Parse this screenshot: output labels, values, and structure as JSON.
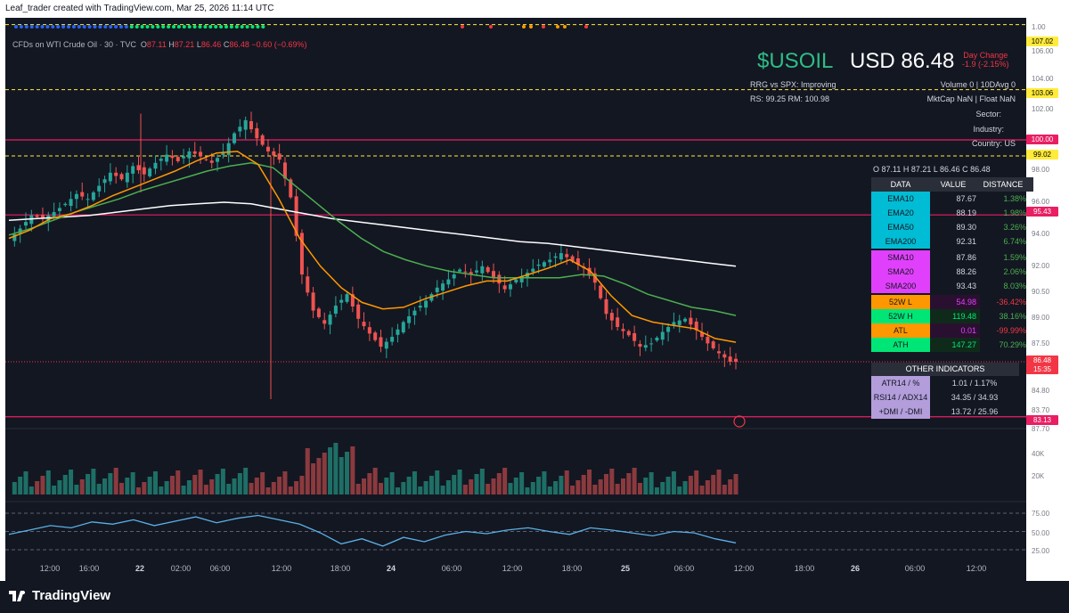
{
  "attribution": "Leaf_trader created with TradingView.com, Mar 25, 2026 11:14 UTC",
  "legend": {
    "symbol_line": "CFDs on WTI Crude Oil · 30 · TVC",
    "o_label": "O",
    "o": "87.11",
    "h_label": "H",
    "h": "87.21",
    "l_label": "L",
    "l": "86.46",
    "c_label": "C",
    "c": "86.48",
    "change": "−0.60 (−0.69%)"
  },
  "header": {
    "symbol": "$USOIL",
    "price": "USD 86.48",
    "day_change_label": "Day Change",
    "day_change": "-1.9 (-2.15%)",
    "rrg": "RRG vs SPX: Improving",
    "rs": "RS: 99.25  RM: 100.98",
    "volume": "Volume 0 | 10DAvg 0",
    "mktcap": "MktCap NaN | Float NaN",
    "sector": "Sector:",
    "industry": "Industry:",
    "country": "Country: US"
  },
  "table": {
    "ohlc": "O 87.11    H 87.21    L 86.46    C 86.48",
    "headers": [
      "DATA",
      "VALUE",
      "DISTANCE"
    ],
    "ema": [
      {
        "name": "EMA10",
        "value": "87.67",
        "distance": "1.38%"
      },
      {
        "name": "EMA20",
        "value": "88.19",
        "distance": "1.98%"
      },
      {
        "name": "EMA50",
        "value": "89.30",
        "distance": "3.26%"
      },
      {
        "name": "EMA200",
        "value": "92.31",
        "distance": "6.74%"
      }
    ],
    "sma": [
      {
        "name": "SMA10",
        "value": "87.86",
        "distance": "1.59%"
      },
      {
        "name": "SMA20",
        "value": "88.26",
        "distance": "2.06%"
      },
      {
        "name": "SMA200",
        "value": "93.43",
        "distance": "8.03%"
      }
    ],
    "ext": [
      {
        "name": "52W L",
        "value": "54.98",
        "distance": "-36.42%"
      },
      {
        "name": "52W H",
        "value": "119.48",
        "distance": "38.16%"
      },
      {
        "name": "ATL",
        "value": "0.01",
        "distance": "-99.99%"
      },
      {
        "name": "ATH",
        "value": "147.27",
        "distance": "70.29%"
      }
    ],
    "other_title": "OTHER INDICATORS",
    "other": [
      {
        "name": "ATR14 / %",
        "value": "1.01 / 1.17%"
      },
      {
        "name": "RSI14 / ADX14",
        "value": "34.35 / 34.93"
      },
      {
        "name": "+DMI / -DMI",
        "value": "13.72 / 25.96"
      }
    ]
  },
  "price_labels": [
    {
      "value": "107.02",
      "color": "#ffeb3b",
      "text_color": "#000000"
    },
    {
      "value": "103.06",
      "color": "#ffeb3b",
      "text_color": "#000000"
    },
    {
      "value": "100.00",
      "color": "#e91e63",
      "text_color": "#ffffff"
    },
    {
      "value": "99.02",
      "color": "#ffeb3b",
      "text_color": "#000000"
    },
    {
      "value": "95.43",
      "color": "#e91e63",
      "text_color": "#ffffff"
    },
    {
      "value": "86.48",
      "color": "#f23645",
      "text_color": "#ffffff"
    },
    {
      "value": "15:35",
      "color": "#f23645",
      "text_color": "#ffffff"
    },
    {
      "value": "83.13",
      "color": "#e91e63",
      "text_color": "#ffffff"
    }
  ],
  "right_ticks": [
    "1.00",
    "106.00",
    "104.00",
    "102.00",
    "98.00",
    "96.00",
    "94.00",
    "92.00",
    "90.50",
    "89.00",
    "87.50",
    "84.80",
    "83.70",
    "87.70",
    "40K",
    "20K",
    "75.00",
    "50.00",
    "25.00"
  ],
  "x_ticks": [
    {
      "label": "12:00",
      "bold": false
    },
    {
      "label": "16:00",
      "bold": false
    },
    {
      "label": "22",
      "bold": true
    },
    {
      "label": "02:00",
      "bold": false
    },
    {
      "label": "06:00",
      "bold": false
    },
    {
      "label": "12:00",
      "bold": false
    },
    {
      "label": "18:00",
      "bold": false
    },
    {
      "label": "24",
      "bold": true
    },
    {
      "label": "06:00",
      "bold": false
    },
    {
      "label": "12:00",
      "bold": false
    },
    {
      "label": "18:00",
      "bold": false
    },
    {
      "label": "25",
      "bold": true
    },
    {
      "label": "06:00",
      "bold": false
    },
    {
      "label": "12:00",
      "bold": false
    },
    {
      "label": "18:00",
      "bold": false
    },
    {
      "label": "26",
      "bold": true
    },
    {
      "label": "06:00",
      "bold": false
    },
    {
      "label": "12:00",
      "bold": false
    }
  ],
  "brand": "TradingView",
  "colors": {
    "up": "#26a69a",
    "down": "#ef5350",
    "ema10": "#ff9800",
    "ema50": "#4caf50",
    "ema200": "#ffffff",
    "rsi": "#5ab0e6",
    "hline": "#e91e63",
    "dashed": "#ffeb3b"
  },
  "chart_data": {
    "type": "candlestick",
    "title": "CFDs on WTI Crude Oil · 30 · TVC",
    "x_labels": [
      "12:00",
      "16:00",
      "22",
      "02:00",
      "06:00",
      "12:00",
      "18:00",
      "24",
      "06:00",
      "12:00",
      "18:00",
      "25",
      "06:00",
      "12:00"
    ],
    "ylim": [
      83.13,
      107.02
    ],
    "close_path": [
      93.9,
      94.6,
      95.4,
      95.2,
      95.6,
      96.1,
      96.7,
      96.4,
      97.2,
      98.0,
      97.6,
      98.4,
      97.9,
      98.6,
      99.1,
      98.7,
      99.3,
      99.0,
      98.6,
      99.2,
      100.4,
      101.2,
      100.1,
      99.3,
      98.8,
      96.5,
      91.8,
      89.6,
      88.8,
      89.9,
      90.6,
      89.1,
      88.2,
      87.4,
      88.0,
      88.9,
      89.6,
      90.2,
      91.0,
      91.5,
      92.1,
      91.8,
      92.3,
      91.6,
      90.9,
      91.5,
      91.9,
      92.4,
      92.7,
      93.1,
      92.6,
      92.2,
      91.3,
      89.4,
      88.6,
      88.1,
      87.4,
      87.6,
      88.3,
      88.9,
      89.1,
      88.4,
      87.6,
      87.0,
      86.48
    ],
    "ema10": [
      94.0,
      94.5,
      95.2,
      95.5,
      96.0,
      96.6,
      97.1,
      97.6,
      98.1,
      98.7,
      99.2,
      99.3,
      98.5,
      96.4,
      94.0,
      92.3,
      91.0,
      90.1,
      89.7,
      89.8,
      90.3,
      90.7,
      91.1,
      91.4,
      91.4,
      91.8,
      92.2,
      92.7,
      92.0,
      90.5,
      89.3,
      88.9,
      88.7,
      88.5,
      87.9,
      87.67
    ],
    "ema50": [
      94.2,
      94.6,
      95.1,
      95.6,
      96.0,
      96.4,
      96.9,
      97.3,
      97.7,
      98.1,
      98.4,
      98.6,
      98.3,
      97.2,
      96.1,
      95.0,
      94.0,
      93.2,
      92.7,
      92.3,
      92.0,
      91.8,
      91.6,
      91.6,
      91.6,
      91.6,
      91.8,
      91.7,
      91.2,
      90.6,
      90.2,
      89.8,
      89.6,
      89.3
    ],
    "ema200": [
      95.1,
      95.2,
      95.3,
      95.4,
      95.6,
      95.8,
      96.0,
      96.1,
      96.2,
      96.1,
      95.8,
      95.5,
      95.2,
      95.0,
      94.8,
      94.6,
      94.4,
      94.2,
      94.0,
      93.8,
      93.7,
      93.5,
      93.3,
      93.1,
      92.9,
      92.7,
      92.5,
      92.31
    ],
    "rsi14": [
      46,
      52,
      58,
      55,
      63,
      60,
      66,
      58,
      64,
      70,
      62,
      68,
      72,
      66,
      60,
      48,
      33,
      40,
      30,
      42,
      36,
      45,
      50,
      47,
      52,
      55,
      50,
      46,
      55,
      52,
      48,
      44,
      50,
      48,
      40,
      34.35
    ],
    "rsi_levels": [
      75,
      50,
      25
    ],
    "volume_range": [
      "0",
      "40K"
    ]
  }
}
